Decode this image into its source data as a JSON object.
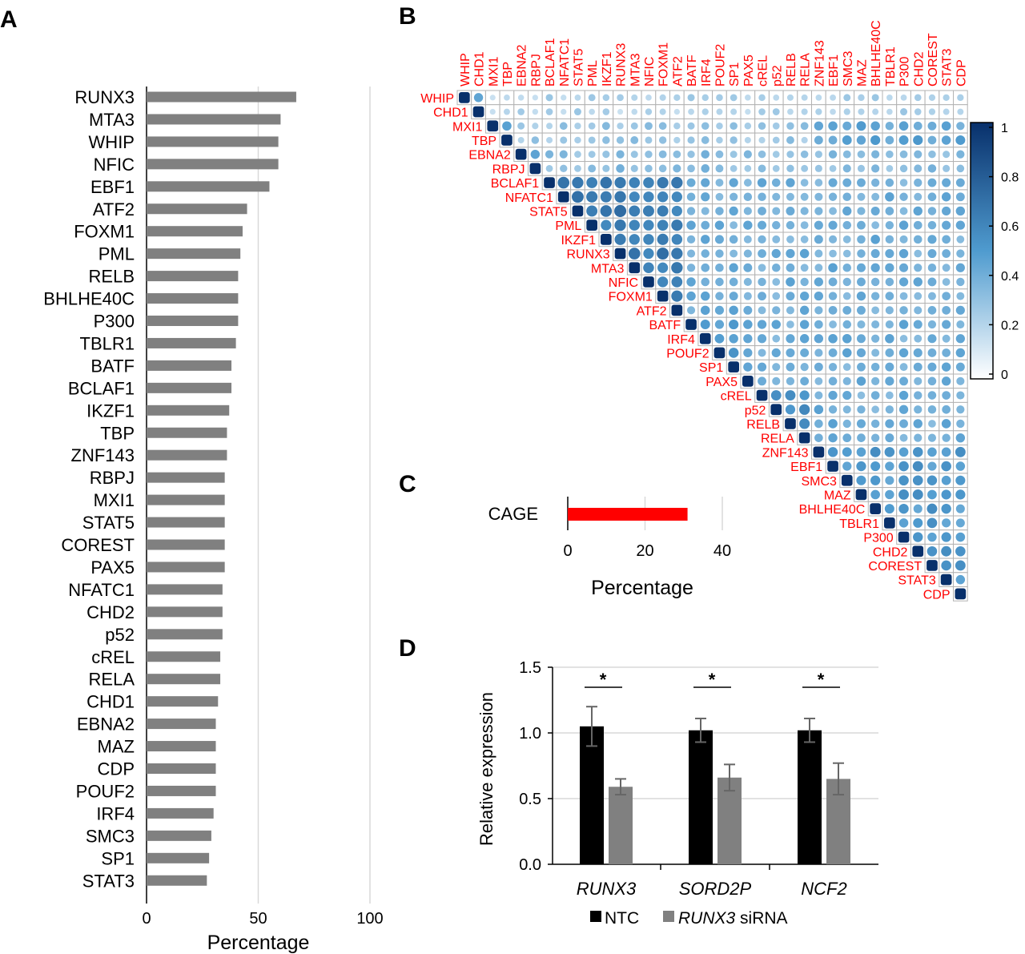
{
  "panels": {
    "a": "A",
    "b": "B",
    "c": "C",
    "d": "D"
  },
  "chart_data": [
    {
      "id": "A",
      "type": "bar",
      "orientation": "horizontal",
      "categories": [
        "RUNX3",
        "MTA3",
        "WHIP",
        "NFIC",
        "EBF1",
        "ATF2",
        "FOXM1",
        "PML",
        "RELB",
        "BHLHE40C",
        "P300",
        "TBLR1",
        "BATF",
        "BCLAF1",
        "IKZF1",
        "TBP",
        "ZNF143",
        "RBPJ",
        "MXI1",
        "STAT5",
        "COREST",
        "PAX5",
        "NFATC1",
        "CHD2",
        "p52",
        "cREL",
        "RELA",
        "CHD1",
        "EBNA2",
        "MAZ",
        "CDP",
        "POUF2",
        "IRF4",
        "SMC3",
        "SP1",
        "STAT3"
      ],
      "values": [
        67,
        60,
        59,
        59,
        55,
        45,
        43,
        42,
        41,
        41,
        41,
        40,
        38,
        38,
        37,
        36,
        36,
        35,
        35,
        35,
        35,
        35,
        34,
        34,
        34,
        33,
        33,
        32,
        31,
        31,
        31,
        31,
        30,
        29,
        28,
        27
      ],
      "xlabel": "Percentage",
      "ylabel": "",
      "xlim": [
        0,
        100
      ],
      "xticks": [
        "0",
        "50",
        "100"
      ],
      "xtick_values": [
        0,
        50,
        100
      ],
      "color": "#808080"
    },
    {
      "id": "B",
      "type": "heatmap",
      "subtype": "correlation-upper-triangle",
      "labels": [
        "WHIP",
        "CHD1",
        "MXI1",
        "TBP",
        "EBNA2",
        "RBPJ",
        "BCLAF1",
        "NFATC1",
        "STAT5",
        "PML",
        "IKZF1",
        "RUNX3",
        "MTA3",
        "NFIC",
        "FOXM1",
        "ATF2",
        "BATF",
        "IRF4",
        "POUF2",
        "SP1",
        "PAX5",
        "cREL",
        "p52",
        "RELB",
        "RELA",
        "ZNF143",
        "EBF1",
        "SMC3",
        "MAZ",
        "BHLHE40C",
        "TBLR1",
        "P300",
        "CHD2",
        "COREST",
        "STAT3",
        "CDP"
      ],
      "label_color": "#ff0000",
      "colorbar": {
        "min": 0,
        "max": 1,
        "ticks": [
          "0",
          "0.2",
          "0.4",
          "0.6",
          "0.8",
          "1"
        ],
        "tick_values": [
          0,
          0.2,
          0.4,
          0.6,
          0.8,
          1
        ],
        "low_color": "#ffffff",
        "mid_color": "#4f9bcf",
        "high_color": "#08306b"
      },
      "notes": "Pairwise overlap values estimated from circle colour; diagonal = 1."
    },
    {
      "id": "C",
      "type": "bar",
      "orientation": "horizontal",
      "categories": [
        "CAGE"
      ],
      "values": [
        31
      ],
      "xlabel": "Percentage",
      "xlim": [
        0,
        40
      ],
      "xticks": [
        "0",
        "20",
        "40"
      ],
      "xtick_values": [
        0,
        20,
        40
      ],
      "color": "#ff0000"
    },
    {
      "id": "D",
      "type": "bar",
      "categories": [
        "RUNX3",
        "SORD2P",
        "NCF2"
      ],
      "series": [
        {
          "name": "NTC",
          "values": [
            1.05,
            1.02,
            1.02
          ],
          "errors": [
            0.15,
            0.09,
            0.09
          ],
          "color": "#000000"
        },
        {
          "name": "siRNA",
          "name_prefix": "RUNX3",
          "values": [
            0.59,
            0.66,
            0.65
          ],
          "errors": [
            0.06,
            0.1,
            0.12
          ],
          "color": "#808080"
        }
      ],
      "significance": [
        "*",
        "*",
        "*"
      ],
      "ylabel": "Relative expression",
      "ylim": [
        0,
        1.5
      ],
      "yticks": [
        "0.0",
        "0.5",
        "1.0",
        "1.5"
      ],
      "ytick_values": [
        0,
        0.5,
        1.0,
        1.5
      ]
    }
  ]
}
